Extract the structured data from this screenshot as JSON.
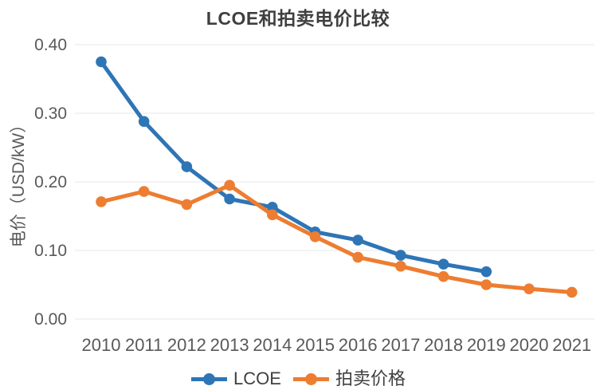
{
  "chart_data": {
    "type": "line",
    "title": "LCOE和拍卖电价比较",
    "xlabel": "",
    "ylabel": "电价（USD/kW）",
    "categories": [
      "2010",
      "2011",
      "2012",
      "2013",
      "2014",
      "2015",
      "2016",
      "2017",
      "2018",
      "2019",
      "2020",
      "2021"
    ],
    "series": [
      {
        "name": "LCOE",
        "color": "#2E75B6",
        "values": [
          0.375,
          0.288,
          0.222,
          0.175,
          0.163,
          0.127,
          0.115,
          0.093,
          0.08,
          0.069,
          null,
          null
        ]
      },
      {
        "name": "拍卖价格",
        "color": "#ED7D31",
        "values": [
          0.171,
          0.186,
          0.167,
          0.195,
          0.152,
          0.12,
          0.09,
          0.077,
          0.062,
          0.05,
          0.044,
          0.039
        ]
      }
    ],
    "ylim": [
      0,
      0.4
    ],
    "ytick_step": 0.1,
    "ytick_labels": [
      "0.00",
      "0.10",
      "0.20",
      "0.30",
      "0.40"
    ],
    "grid": true,
    "gridline_color": "#ececec",
    "tick_color": "#595959",
    "legend_position": "bottom"
  }
}
